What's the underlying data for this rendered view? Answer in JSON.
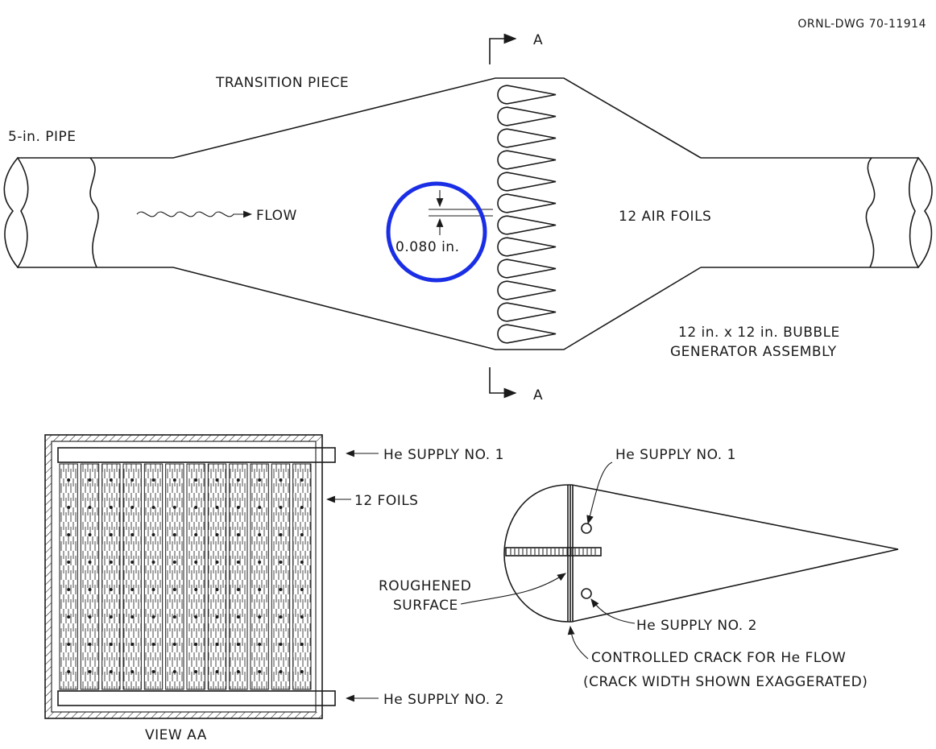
{
  "drawing_number": "ORNL-DWG 70-11914",
  "top_view": {
    "transition_label": "TRANSITION PIECE",
    "pipe_label": "5-in. PIPE",
    "flow_label": "FLOW",
    "dimension_label": "0.080 in.",
    "foils_label": "12 AIR FOILS",
    "assembly_line1": "12 in. x 12 in. BUBBLE",
    "assembly_line2": "GENERATOR ASSEMBLY",
    "section_marker_top": "A",
    "section_marker_bottom": "A",
    "airfoil_count": 12,
    "highlight_color": "#1a2ee6"
  },
  "view_aa": {
    "caption": "VIEW AA",
    "supply_1_label": "He SUPPLY NO. 1",
    "supply_2_label": "He SUPPLY NO. 2",
    "foils_label": "12 FOILS",
    "foil_count": 12
  },
  "foil_section": {
    "supply_1_label": "He SUPPLY NO. 1",
    "supply_2_label": "He SUPPLY NO. 2",
    "roughened_line1": "ROUGHENED",
    "roughened_line2": "SURFACE",
    "crack_line1": "CONTROLLED CRACK FOR He FLOW",
    "crack_line2": "(CRACK WIDTH SHOWN EXAGGERATED)"
  }
}
